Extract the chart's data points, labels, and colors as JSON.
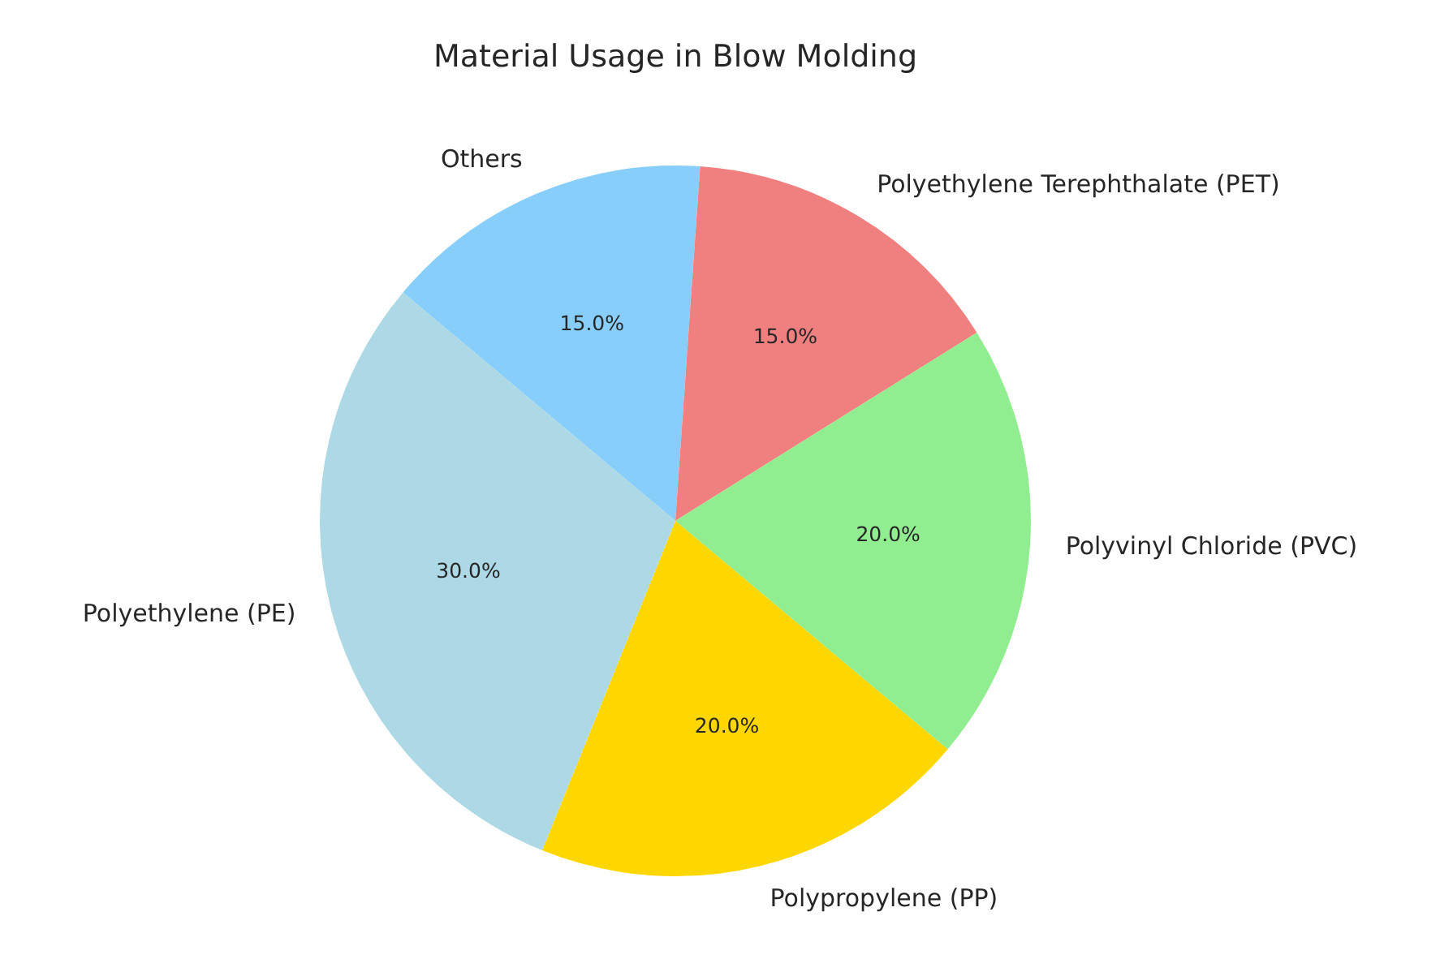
{
  "chart_data": {
    "type": "pie",
    "title": "Material Usage in Blow Molding",
    "categories": [
      "Others",
      "Polyethylene Terephthalate (PET)",
      "Polyvinyl Chloride (PVC)",
      "Polypropylene (PP)",
      "Polyethylene (PE)"
    ],
    "values": [
      15,
      15,
      20,
      20,
      30
    ],
    "colors": [
      "#87cefa",
      "#f08080",
      "#90ee90",
      "#ffd700",
      "#add8e6"
    ],
    "value_labels": [
      "15.0%",
      "15.0%",
      "20.0%",
      "20.0%",
      "30.0%"
    ],
    "legend": false
  }
}
